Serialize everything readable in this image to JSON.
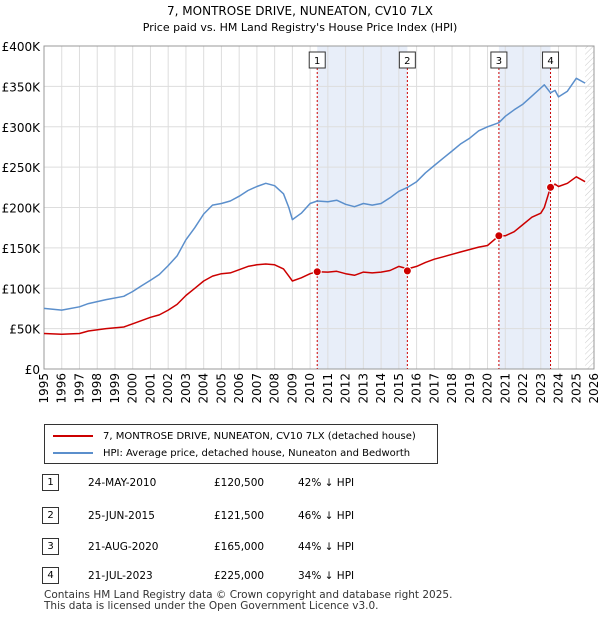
{
  "chart_data": {
    "type": "line",
    "title": "7, MONTROSE DRIVE, NUNEATON, CV10 7LX",
    "subtitle": "Price paid vs. HM Land Registry's House Price Index (HPI)",
    "xlabel": "",
    "ylabel": "",
    "xlim": [
      1995,
      2026
    ],
    "ylim": [
      0,
      400000
    ],
    "x_ticks": [
      "1995",
      "1996",
      "1997",
      "1998",
      "1999",
      "2000",
      "2001",
      "2002",
      "2003",
      "2004",
      "2005",
      "2006",
      "2007",
      "2008",
      "2009",
      "2010",
      "2011",
      "2012",
      "2013",
      "2014",
      "2015",
      "2016",
      "2017",
      "2018",
      "2019",
      "2020",
      "2021",
      "2022",
      "2023",
      "2024",
      "2025",
      "2026"
    ],
    "y_ticks": [
      {
        "value": 0,
        "label": "£0"
      },
      {
        "value": 50000,
        "label": "£50K"
      },
      {
        "value": 100000,
        "label": "£100K"
      },
      {
        "value": 150000,
        "label": "£150K"
      },
      {
        "value": 200000,
        "label": "£200K"
      },
      {
        "value": 250000,
        "label": "£250K"
      },
      {
        "value": 300000,
        "label": "£300K"
      },
      {
        "value": 350000,
        "label": "£350K"
      },
      {
        "value": 400000,
        "label": "£400K"
      }
    ],
    "grid": true,
    "series": [
      {
        "name": "7, MONTROSE DRIVE, NUNEATON, CV10 7LX (detached house)",
        "color": "#cc0000",
        "x": [
          1995.0,
          1996.0,
          1997.0,
          1997.5,
          1998.5,
          1999.5,
          2000.0,
          2000.5,
          2001.0,
          2001.5,
          2002.0,
          2002.5,
          2003.0,
          2003.5,
          2004.0,
          2004.5,
          2005.0,
          2005.5,
          2006.0,
          2006.5,
          2007.0,
          2007.5,
          2008.0,
          2008.5,
          2008.8,
          2009.0,
          2009.5,
          2010.0,
          2010.4,
          2011.0,
          2011.5,
          2012.0,
          2012.5,
          2013.0,
          2013.5,
          2014.0,
          2014.5,
          2015.0,
          2015.5,
          2016.0,
          2016.5,
          2017.0,
          2017.5,
          2018.0,
          2018.5,
          2019.0,
          2019.5,
          2020.0,
          2020.64,
          2021.0,
          2021.5,
          2022.0,
          2022.5,
          2023.0,
          2023.2,
          2023.55,
          2023.8,
          2024.0,
          2024.5,
          2025.0,
          2025.5
        ],
        "values": [
          44000,
          43000,
          44000,
          47000,
          50000,
          52000,
          56000,
          60000,
          64000,
          67000,
          73000,
          80000,
          91000,
          100000,
          109000,
          115000,
          118000,
          119000,
          123000,
          127000,
          129000,
          130000,
          129000,
          124000,
          115000,
          109000,
          113000,
          118000,
          120500,
          120000,
          121000,
          118000,
          116000,
          120000,
          119000,
          120000,
          122000,
          127000,
          124000,
          127000,
          132000,
          136000,
          139000,
          142000,
          145000,
          148000,
          151000,
          153000,
          165000,
          165000,
          170000,
          179000,
          188000,
          193000,
          200000,
          225000,
          229000,
          226000,
          230000,
          238000,
          232000
        ]
      },
      {
        "name": "HPI: Average price, detached house, Nuneaton and Bedworth",
        "color": "#5b8fcc",
        "x": [
          1995.0,
          1996.0,
          1997.0,
          1997.5,
          1998.5,
          1999.5,
          2000.0,
          2000.5,
          2001.0,
          2001.5,
          2002.0,
          2002.5,
          2003.0,
          2003.5,
          2004.0,
          2004.5,
          2005.0,
          2005.5,
          2006.0,
          2006.5,
          2007.0,
          2007.5,
          2008.0,
          2008.5,
          2008.8,
          2009.0,
          2009.5,
          2010.0,
          2010.4,
          2011.0,
          2011.5,
          2012.0,
          2012.5,
          2013.0,
          2013.5,
          2014.0,
          2014.5,
          2015.0,
          2015.5,
          2016.0,
          2016.5,
          2017.0,
          2017.5,
          2018.0,
          2018.5,
          2019.0,
          2019.5,
          2020.0,
          2020.64,
          2021.0,
          2021.5,
          2022.0,
          2022.5,
          2023.0,
          2023.2,
          2023.55,
          2023.8,
          2024.0,
          2024.5,
          2025.0,
          2025.5
        ],
        "values": [
          75000,
          73000,
          77000,
          81000,
          86000,
          90000,
          96000,
          103000,
          110000,
          117000,
          128000,
          140000,
          160000,
          175000,
          192000,
          203000,
          205000,
          208000,
          214000,
          221000,
          226000,
          230000,
          227000,
          217000,
          200000,
          185000,
          193000,
          205000,
          208000,
          207000,
          209000,
          204000,
          201000,
          205000,
          203000,
          205000,
          212000,
          220000,
          225000,
          232000,
          243000,
          252000,
          261000,
          270000,
          279000,
          286000,
          295000,
          300000,
          305000,
          313000,
          321000,
          328000,
          338000,
          348000,
          352000,
          342000,
          345000,
          337000,
          344000,
          360000,
          354000
        ]
      }
    ],
    "markers": [
      {
        "num": "1",
        "x": 2010.4,
        "value": 120500
      },
      {
        "num": "2",
        "x": 2015.48,
        "value": 121500
      },
      {
        "num": "3",
        "x": 2020.64,
        "value": 165000
      },
      {
        "num": "4",
        "x": 2023.55,
        "value": 225000
      }
    ],
    "shaded_ranges": [
      [
        2010.4,
        2015.48
      ],
      [
        2020.64,
        2023.55
      ]
    ],
    "future_from": 2025.5
  },
  "legend": {
    "property_label": "7, MONTROSE DRIVE, NUNEATON, CV10 7LX (detached house)",
    "hpi_label": "HPI: Average price, detached house, Nuneaton and Bedworth"
  },
  "transactions": [
    {
      "num": "1",
      "date": "24-MAY-2010",
      "price": "£120,500",
      "hpi": "42% ↓ HPI"
    },
    {
      "num": "2",
      "date": "25-JUN-2015",
      "price": "£121,500",
      "hpi": "46% ↓ HPI"
    },
    {
      "num": "3",
      "date": "21-AUG-2020",
      "price": "£165,000",
      "hpi": "44% ↓ HPI"
    },
    {
      "num": "4",
      "date": "21-JUL-2023",
      "price": "£225,000",
      "hpi": "34% ↓ HPI"
    }
  ],
  "footer": {
    "line1": "Contains HM Land Registry data © Crown copyright and database right 2025.",
    "line2": "This data is licensed under the Open Government Licence v3.0."
  }
}
